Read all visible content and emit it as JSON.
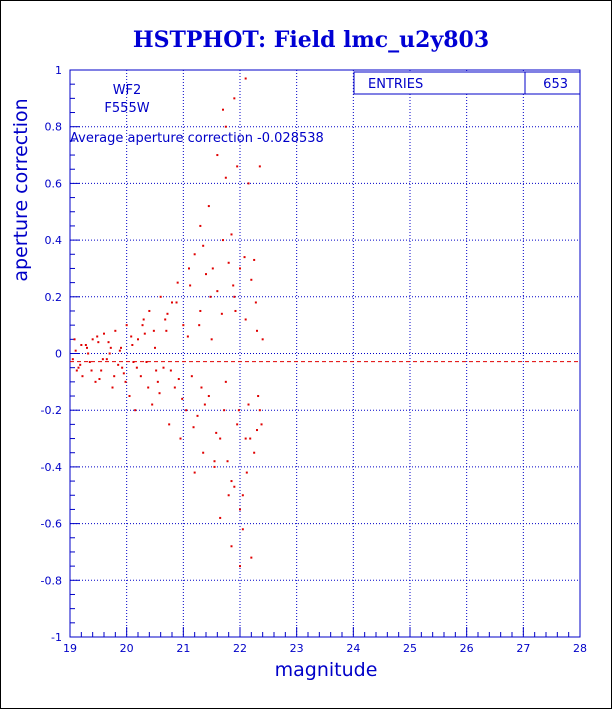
{
  "chart_data": {
    "type": "scatter",
    "title": "HSTPHOT: Field lmc_u2y803",
    "xlabel": "magnitude",
    "ylabel": "aperture correction",
    "xlim": [
      19,
      28
    ],
    "ylim": [
      -1,
      1
    ],
    "xticks": [
      "19",
      "20",
      "21",
      "22",
      "23",
      "24",
      "25",
      "26",
      "27",
      "28"
    ],
    "yticks": [
      "-1",
      "-0.8",
      "-0.6",
      "-0.4",
      "-0.2",
      "0",
      "0.2",
      "0.4",
      "0.6",
      "0.8",
      "1"
    ],
    "grid": true,
    "stats_box": {
      "label": "ENTRIES",
      "value": "653",
      "placement": "top-right"
    },
    "annotations": {
      "camera": "WF2",
      "filter": "F555W",
      "average_text": "Average aperture correction -0.028538"
    },
    "average_line": -0.028538,
    "point_color": "#e00000",
    "axis_color": "#0000c8",
    "grid_color": "#0000c8",
    "x": [
      19.05,
      19.1,
      19.15,
      19.2,
      19.22,
      19.3,
      19.35,
      19.4,
      19.45,
      19.5,
      19.55,
      19.6,
      19.65,
      19.7,
      19.75,
      19.8,
      19.85,
      19.9,
      19.95,
      20.0,
      20.05,
      20.1,
      20.15,
      20.2,
      20.25,
      20.3,
      20.35,
      20.4,
      20.45,
      20.5,
      20.55,
      20.6,
      20.65,
      20.7,
      20.75,
      20.8,
      20.85,
      20.9,
      20.95,
      21.0,
      21.05,
      21.1,
      21.15,
      21.2,
      21.25,
      21.3,
      21.35,
      21.4,
      21.45,
      21.5,
      21.55,
      21.6,
      21.65,
      21.7,
      21.75,
      21.8,
      21.85,
      21.9,
      21.95,
      22.0,
      22.05,
      22.1,
      22.15,
      22.2,
      22.25,
      22.3,
      22.35,
      22.4,
      19.08,
      19.18,
      19.28,
      19.38,
      19.48,
      19.58,
      19.68,
      19.78,
      19.88,
      19.98,
      20.08,
      20.18,
      20.28,
      20.38,
      20.48,
      20.58,
      20.68,
      20.78,
      20.88,
      20.98,
      21.08,
      21.18,
      21.28,
      21.38,
      21.48,
      21.58,
      21.68,
      21.78,
      21.88,
      21.98,
      22.08,
      22.18,
      22.28,
      22.38,
      19.12,
      19.32,
      19.52,
      19.72,
      19.92,
      20.12,
      20.32,
      20.52,
      20.72,
      20.92,
      21.12,
      21.32,
      21.52,
      21.72,
      21.92,
      22.12,
      22.32,
      21.7,
      21.75,
      21.9,
      22.1,
      22.15,
      21.6,
      21.95,
      22.35,
      21.2,
      21.8,
      22.0,
      21.85,
      22.2,
      21.65,
      22.05,
      21.3,
      21.55,
      22.25,
      21.45,
      21.9,
      21.75,
      22.1,
      21.85,
      22.3,
      21.35,
      22.0
    ],
    "y": [
      -0.02,
      0.01,
      -0.05,
      0.03,
      -0.08,
      0.02,
      -0.03,
      0.05,
      -0.1,
      0.04,
      -0.06,
      0.07,
      -0.02,
      0.0,
      -0.12,
      0.08,
      -0.04,
      0.02,
      -0.07,
      0.1,
      -0.15,
      0.03,
      -0.2,
      0.05,
      -0.08,
      0.12,
      -0.03,
      0.15,
      -0.18,
      0.02,
      -0.1,
      0.2,
      -0.05,
      0.08,
      -0.25,
      0.18,
      -0.12,
      0.25,
      -0.3,
      0.1,
      -0.2,
      0.3,
      -0.08,
      0.35,
      -0.22,
      0.15,
      -0.35,
      0.28,
      -0.15,
      0.05,
      -0.4,
      0.22,
      -0.3,
      0.4,
      -0.1,
      0.32,
      -0.45,
      0.2,
      -0.25,
      0.3,
      -0.5,
      0.12,
      -0.18,
      0.26,
      -0.35,
      0.08,
      -0.2,
      0.05,
      0.05,
      -0.04,
      0.03,
      -0.06,
      0.06,
      -0.02,
      0.04,
      -0.08,
      0.01,
      -0.1,
      0.06,
      -0.05,
      0.1,
      -0.12,
      0.08,
      -0.14,
      0.12,
      -0.06,
      0.18,
      -0.16,
      0.06,
      -0.26,
      0.1,
      -0.18,
      0.2,
      -0.28,
      0.14,
      -0.38,
      0.24,
      -0.2,
      0.34,
      -0.3,
      0.18,
      -0.25,
      -0.06,
      0.0,
      -0.09,
      0.02,
      -0.05,
      -0.03,
      0.07,
      -0.06,
      0.14,
      -0.09,
      0.24,
      -0.12,
      0.3,
      -0.2,
      0.15,
      -0.42,
      -0.15,
      0.86,
      0.8,
      0.9,
      0.97,
      0.6,
      0.7,
      0.66,
      0.66,
      -0.42,
      -0.5,
      -0.55,
      -0.68,
      -0.72,
      -0.58,
      -0.62,
      0.45,
      -0.38,
      0.33,
      0.52,
      -0.47,
      0.62,
      -0.3,
      0.42,
      -0.27,
      0.38,
      -0.75
    ]
  }
}
